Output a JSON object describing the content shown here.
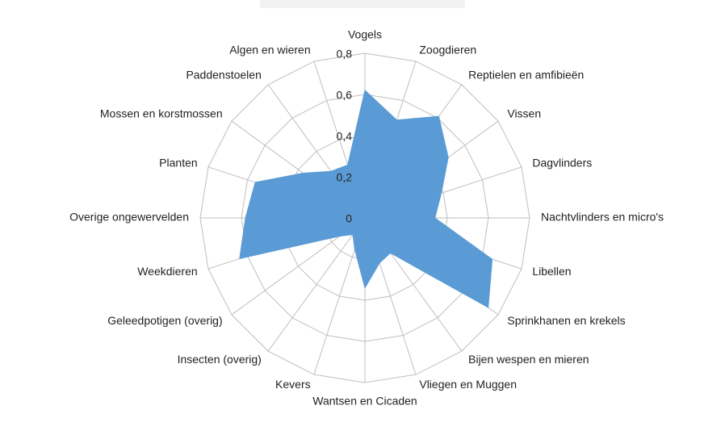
{
  "chart_data": {
    "type": "radar",
    "categories": [
      "Vogels",
      "Zoogdieren",
      "Reptielen en amfibieën",
      "Vissen",
      "Dagvlinders",
      "Nachtvlinders en micro's",
      "Libellen",
      "Sprinkhanen en krekels",
      "Bijen wespen en mieren",
      "Vliegen en Muggen",
      "Wantsen en Cicaden",
      "Kevers",
      "Insecten (overig)",
      "Geleedpotigen (overig)",
      "Weekdieren",
      "Overige ongewervelden",
      "Planten",
      "Mossen en korstmossen",
      "Paddenstoelen",
      "Algen en wieren"
    ],
    "values": [
      0.62,
      0.5,
      0.61,
      0.5,
      0.39,
      0.34,
      0.65,
      0.74,
      0.21,
      0.23,
      0.34,
      0.16,
      0.1,
      0.15,
      0.64,
      0.58,
      0.56,
      0.37,
      0.28,
      0.27
    ],
    "color": "#5b9bd5",
    "ylim": [
      0,
      0.8
    ],
    "yticks": [
      0,
      {
        "value": 0.2,
        "label": "0,2"
      },
      {
        "value": 0.4,
        "label": "0,4"
      },
      {
        "value": 0.6,
        "label": "0,6"
      },
      {
        "value": 0.8,
        "label": "0,8"
      }
    ],
    "grid": true
  }
}
